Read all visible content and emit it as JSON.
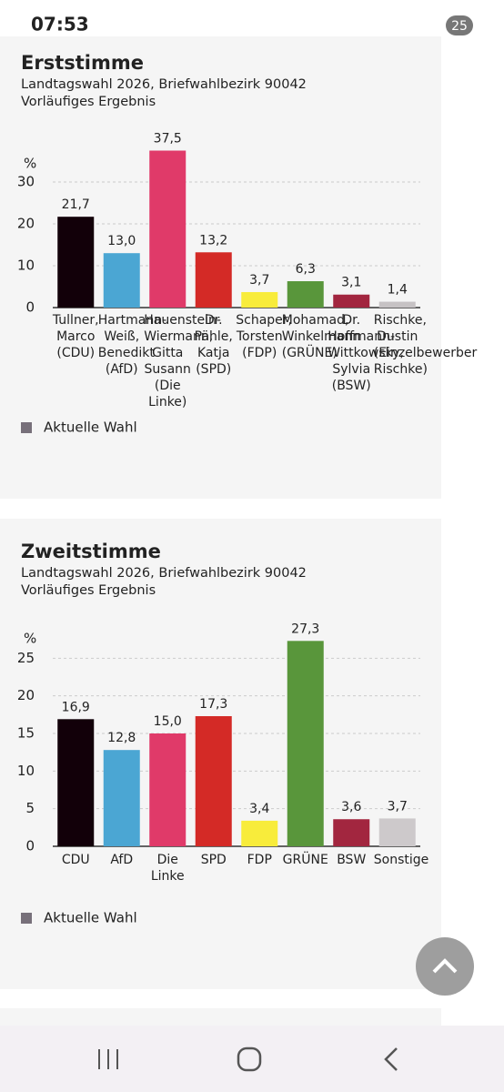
{
  "status_bar": {
    "time": "07:53",
    "battery": "25"
  },
  "chart_data": [
    {
      "type": "bar",
      "title": "Erststimme",
      "subtitle": "Landtagswahl 2026, Briefwahlbezirk 90042",
      "note": "Vorläufiges Ergebnis",
      "ylabel": "%",
      "categories": [
        "Tullner, Marco (CDU)",
        "Hartmann-Weiß, Benedikt (AfD)",
        "Hauenstein-Wiermann, Gitta Susann (Die Linke)",
        "Dr. Pähle, Katja (SPD)",
        "Schaper, Torsten (FDP)",
        "Mohamad, Winkelmann (GRÜNE)",
        "Dr. Hoffmann-Wittkowsky, Sylvia (BSW)",
        "Rischke, Dustin (Einzelbewerber Rischke)"
      ],
      "series": [
        {
          "name": "Aktuelle Wahl",
          "color": "#77707a",
          "colors": [
            "#120009",
            "#4ba6d3",
            "#e03a69",
            "#d42a26",
            "#f8ec3b",
            "#59963b",
            "#a2263f",
            "#c6c2c4"
          ],
          "values": [
            21.7,
            13.0,
            37.5,
            13.2,
            3.7,
            6.3,
            3.1,
            1.4
          ],
          "value_labels": [
            "21,7",
            "13,0",
            "37,5",
            "13,2",
            "3,7",
            "6,3",
            "3,1",
            "1,4"
          ]
        }
      ],
      "ylim": [
        0,
        40
      ],
      "yticks": [
        0,
        10,
        20,
        30
      ],
      "grid": true
    },
    {
      "type": "bar",
      "title": "Zweitstimme",
      "subtitle": "Landtagswahl 2026, Briefwahlbezirk 90042",
      "note": "Vorläufiges Ergebnis",
      "ylabel": "%",
      "categories": [
        "CDU",
        "AfD",
        "Die Linke",
        "SPD",
        "FDP",
        "GRÜNE",
        "BSW",
        "Sonstige"
      ],
      "series": [
        {
          "name": "Aktuelle Wahl",
          "color": "#77707a",
          "colors": [
            "#120009",
            "#4ba6d3",
            "#e03a69",
            "#d42a26",
            "#f8ec3b",
            "#59963b",
            "#a2263f",
            "#cdc9cb"
          ],
          "values": [
            16.9,
            12.8,
            15.0,
            17.3,
            3.4,
            27.3,
            3.6,
            3.7
          ],
          "value_labels": [
            "16,9",
            "12,8",
            "15,0",
            "17,3",
            "3,4",
            "27,3",
            "3,6",
            "3,7"
          ]
        }
      ],
      "ylim": [
        0,
        30
      ],
      "yticks": [
        0,
        5,
        10,
        15,
        20,
        25
      ],
      "grid": true
    }
  ]
}
